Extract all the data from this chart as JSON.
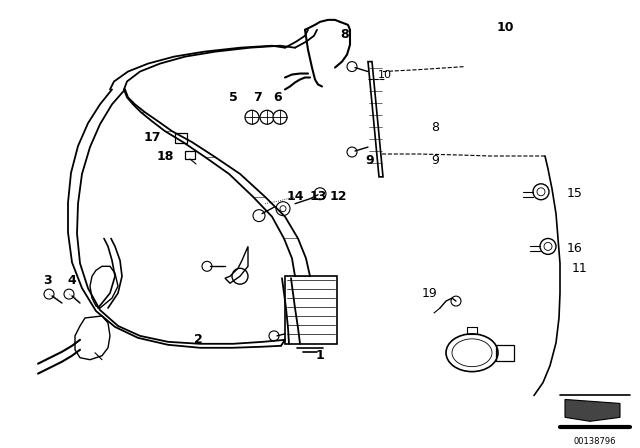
{
  "bg_color": "#ffffff",
  "line_color": "#000000",
  "fig_width": 6.4,
  "fig_height": 4.48,
  "dpi": 100,
  "watermark": "00138796"
}
